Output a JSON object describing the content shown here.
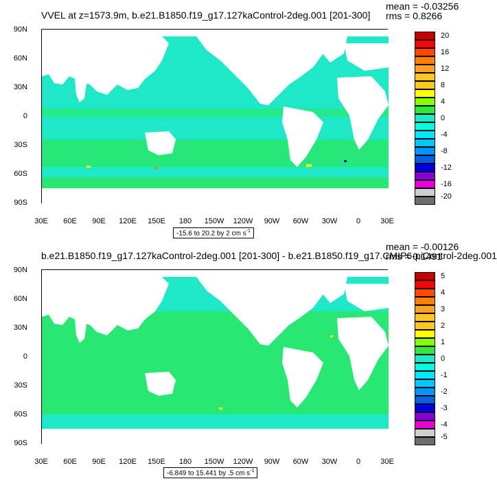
{
  "colors": {
    "ocean_main": "#1ee8c8",
    "ocean_alt": "#2ee83a",
    "land": "#ffffff",
    "colorbar": [
      "#6e6e6e",
      "#cfcfcf",
      "#e800d8",
      "#8800d6",
      "#0000e6",
      "#0060e6",
      "#0096ff",
      "#00c8ff",
      "#00e8ff",
      "#00ffe0",
      "#1ee8c8",
      "#2ee83a",
      "#82ff00",
      "#ffff00",
      "#ffc81e",
      "#ffa01e",
      "#ff8000",
      "#ff4800",
      "#ff0000",
      "#c80000"
    ]
  },
  "panels": [
    {
      "title": "VVEL at z=1573.9m, b.e21.B1850.f19_g17.127kaControl-2deg.001 [201-300]",
      "mean_text": "mean = -0.03256",
      "rms_text": "rms = 0.8266",
      "lat_labels": [
        "90N",
        "60N",
        "30N",
        "0",
        "30S",
        "60S",
        "90S"
      ],
      "lon_labels": [
        "30E",
        "60E",
        "90E",
        "120E",
        "150E",
        "180",
        "150W",
        "120W",
        "90W",
        "60W",
        "30W",
        "0",
        "30E"
      ],
      "range_text": "-15.6 to 20.2 by 2 cm s",
      "range_unit_exp": "-1",
      "colorbar_labels": [
        "20",
        "16",
        "12",
        "8",
        "4",
        "0",
        "-4",
        "-8",
        "-12",
        "-16",
        "-20"
      ]
    },
    {
      "title": "b.e21.B1850.f19_g17.127kaControl-2deg.001 [201-300] - b.e21.B1850.f19_g17.CMIP6-piControl-2deg.001",
      "mean_text": "mean = -0.00126",
      "rms_text": "rms = 0.1491",
      "lat_labels": [
        "90N",
        "60N",
        "30N",
        "0",
        "30S",
        "60S",
        "90S"
      ],
      "lon_labels": [
        "30E",
        "60E",
        "90E",
        "120E",
        "150E",
        "180",
        "150W",
        "120W",
        "90W",
        "60W",
        "30W",
        "0",
        "30E"
      ],
      "range_text": "-6.849 to 15.441 by .5 cm s",
      "range_unit_exp": "-1",
      "colorbar_labels": [
        "5",
        "4",
        "3",
        "2",
        "1",
        "0",
        "-1",
        "-2",
        "-3",
        "-4",
        "-5"
      ]
    }
  ]
}
